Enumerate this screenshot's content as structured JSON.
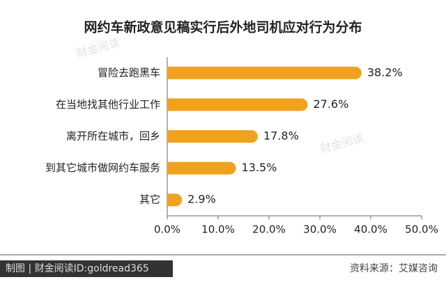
{
  "chart_data": {
    "type": "barh",
    "title": "网约车新政意见稿实行后外地司机应对行为分布",
    "categories": [
      "冒险去跑黑车",
      "在当地找其他行业工作",
      "离开所在城市，回乡",
      "到其它城市做网约车服务",
      "其它"
    ],
    "values": [
      38.2,
      27.6,
      17.8,
      13.5,
      2.9
    ],
    "value_labels": [
      "38.2%",
      "27.6%",
      "17.8%",
      "13.5%",
      "2.9%"
    ],
    "color": "#f0a21e",
    "xlim": [
      0,
      50
    ],
    "xticks": [
      {
        "value": 0,
        "label": "0.0%"
      },
      {
        "value": 10,
        "label": "10.0%"
      },
      {
        "value": 20,
        "label": "20.0%"
      },
      {
        "value": 30,
        "label": "30.0%"
      },
      {
        "value": 40,
        "label": "40.0%"
      },
      {
        "value": 50,
        "label": "50.0%"
      }
    ],
    "watermark": "财金阅读",
    "credit": "制图 | 财金阅读ID:goldread365",
    "source": "资料来源：艾媒咨询"
  }
}
